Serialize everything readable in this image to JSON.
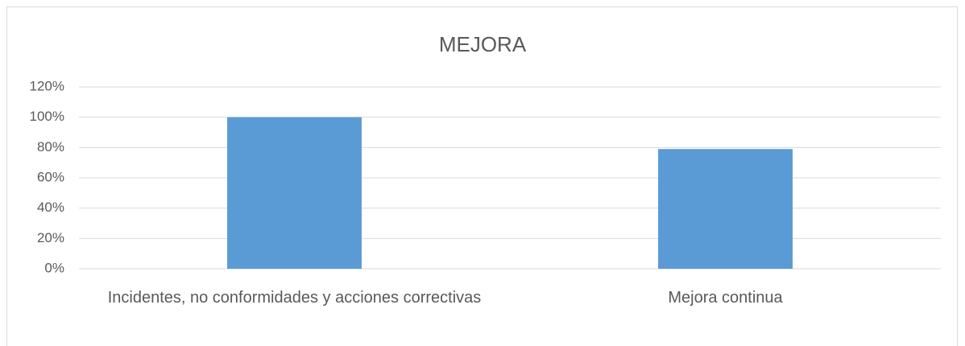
{
  "chart_data": {
    "type": "bar",
    "title": "MEJORA",
    "categories": [
      "Incidentes, no conformidades y acciones correctivas",
      "Mejora continua"
    ],
    "values": [
      100,
      79
    ],
    "color": "#5b9bd5",
    "ylim": [
      0,
      120
    ],
    "yticks": [
      {
        "value": 0,
        "label": "0%"
      },
      {
        "value": 20,
        "label": "20%"
      },
      {
        "value": 40,
        "label": "40%"
      },
      {
        "value": 60,
        "label": "60%"
      },
      {
        "value": 80,
        "label": "80%"
      },
      {
        "value": 100,
        "label": "100%"
      },
      {
        "value": 120,
        "label": "120%"
      }
    ],
    "grid": true
  }
}
